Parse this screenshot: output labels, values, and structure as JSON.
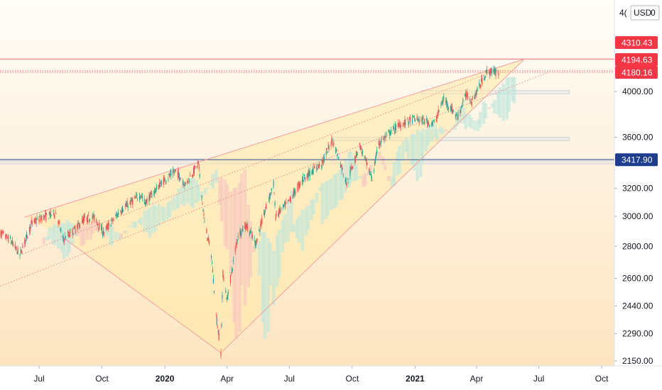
{
  "chart_data": {
    "type": "candlestick",
    "currency_label": "USD",
    "header_fragment": "4(",
    "header_fragment_right": "0",
    "y_ticks": [
      4000.0,
      3600.0,
      3200.0,
      3000.0,
      2800.0,
      2600.0,
      2440.0,
      2290.0,
      2150.0
    ],
    "y_tick_labels": [
      "4000.00",
      "3600.00",
      "3200.00",
      "3000.00",
      "2800.00",
      "2600.00",
      "2440.00",
      "2290.00",
      "2150.00"
    ],
    "price_badges": [
      {
        "label": "4310.43",
        "value": 4310.43,
        "color": "#f23645"
      },
      {
        "label": "4194.63",
        "value": 4194.63,
        "color": "#f23645"
      },
      {
        "label": "4180.16",
        "value": 4180.16,
        "color": "#f23645"
      },
      {
        "label": "3417.90",
        "value": 3417.9,
        "color": "#1e3d8f"
      }
    ],
    "x_ticks": [
      {
        "label": "Jul",
        "date": "2019-07-01",
        "bold": false
      },
      {
        "label": "Oct",
        "date": "2019-10-01",
        "bold": false
      },
      {
        "label": "2020",
        "date": "2020-01-01",
        "bold": true
      },
      {
        "label": "Apr",
        "date": "2020-04-01",
        "bold": false
      },
      {
        "label": "Jul",
        "date": "2020-07-01",
        "bold": false
      },
      {
        "label": "Oct",
        "date": "2020-10-01",
        "bold": false
      },
      {
        "label": "2021",
        "date": "2021-01-01",
        "bold": true
      },
      {
        "label": "Apr",
        "date": "2021-04-01",
        "bold": false
      },
      {
        "label": "Jul",
        "date": "2021-07-01",
        "bold": false
      },
      {
        "label": "Oct",
        "date": "2021-10-01",
        "bold": false
      }
    ],
    "price_path": [
      [
        "2019-05-01",
        2900
      ],
      [
        "2019-05-20",
        2840
      ],
      [
        "2019-06-03",
        2744
      ],
      [
        "2019-06-20",
        2950
      ],
      [
        "2019-07-05",
        2990
      ],
      [
        "2019-07-26",
        3025
      ],
      [
        "2019-08-05",
        2844
      ],
      [
        "2019-08-20",
        2900
      ],
      [
        "2019-09-05",
        2980
      ],
      [
        "2019-09-20",
        2992
      ],
      [
        "2019-10-03",
        2887
      ],
      [
        "2019-10-28",
        3039
      ],
      [
        "2019-11-27",
        3153
      ],
      [
        "2019-12-03",
        3093
      ],
      [
        "2019-12-27",
        3240
      ],
      [
        "2020-01-17",
        3330
      ],
      [
        "2020-01-31",
        3225
      ],
      [
        "2020-02-19",
        3386
      ],
      [
        "2020-02-28",
        2954
      ],
      [
        "2020-03-09",
        2746
      ],
      [
        "2020-03-16",
        2386
      ],
      [
        "2020-03-23",
        2191
      ],
      [
        "2020-03-26",
        2630
      ],
      [
        "2020-04-01",
        2470
      ],
      [
        "2020-04-17",
        2874
      ],
      [
        "2020-04-29",
        2939
      ],
      [
        "2020-05-13",
        2820
      ],
      [
        "2020-06-08",
        3232
      ],
      [
        "2020-06-11",
        3002
      ],
      [
        "2020-06-30",
        3100
      ],
      [
        "2020-07-22",
        3276
      ],
      [
        "2020-08-18",
        3390
      ],
      [
        "2020-09-02",
        3580
      ],
      [
        "2020-09-23",
        3237
      ],
      [
        "2020-10-12",
        3534
      ],
      [
        "2020-10-30",
        3270
      ],
      [
        "2020-11-09",
        3550
      ],
      [
        "2020-12-08",
        3702
      ],
      [
        "2020-12-31",
        3756
      ],
      [
        "2021-01-29",
        3714
      ],
      [
        "2021-02-12",
        3934
      ],
      [
        "2021-03-04",
        3768
      ],
      [
        "2021-03-17",
        3975
      ],
      [
        "2021-03-25",
        3909
      ],
      [
        "2021-04-16",
        4185
      ],
      [
        "2021-04-26",
        4187
      ],
      [
        "2021-05-03",
        4180
      ]
    ],
    "trendlines": [
      {
        "name": "wedge-upper",
        "from": [
          "2019-06-10",
          2995
        ],
        "to": [
          "2021-06-10",
          4310
        ],
        "style": "solid"
      },
      {
        "name": "wedge-lower-left",
        "from": [
          "2019-08-01",
          2870
        ],
        "to": [
          "2020-03-23",
          2191
        ],
        "style": "solid"
      },
      {
        "name": "wedge-lower-right",
        "from": [
          "2020-03-23",
          2191
        ],
        "to": [
          "2021-06-10",
          4310
        ],
        "style": "solid"
      },
      {
        "name": "channel-mid",
        "from": [
          "2019-06-03",
          2744
        ],
        "to": [
          "2021-04-30",
          4200
        ],
        "style": "dotted"
      },
      {
        "name": "channel-low",
        "from": [
          "2019-04-20",
          2530
        ],
        "to": [
          "2021-07-15",
          4180
        ],
        "style": "dotted"
      }
    ],
    "horizontal_lines": [
      {
        "value": 4310.43,
        "style": "solid",
        "color": "#f23645"
      },
      {
        "value": 4194.63,
        "style": "dotted",
        "color": "#f23645"
      },
      {
        "value": 4180.16,
        "style": "dotted",
        "color": "#f23645"
      },
      {
        "value": 3417.9,
        "style": "solid",
        "color": "#1e3d8f"
      }
    ],
    "zones": [
      {
        "name": "zone-4000",
        "start": "2021-01-10",
        "end": "2021-08-15",
        "low": 3975,
        "high": 4010
      },
      {
        "name": "zone-3580",
        "start": "2020-09-01",
        "end": "2021-08-15",
        "low": 3570,
        "high": 3600
      },
      {
        "name": "zone-3390",
        "start": "2019-04-20",
        "end": "2021-11-30",
        "low": 3385,
        "high": 3425
      }
    ],
    "colors": {
      "up": "#26a69a",
      "down": "#ef5350",
      "wedge_fill": "#ffe9a8",
      "trendline": "#f4a0a0",
      "background_top": "#fffdf7",
      "background_bottom": "#fde0b6",
      "cloud_green": "#bfe6dc",
      "cloud_red": "#f7c6c0"
    }
  }
}
